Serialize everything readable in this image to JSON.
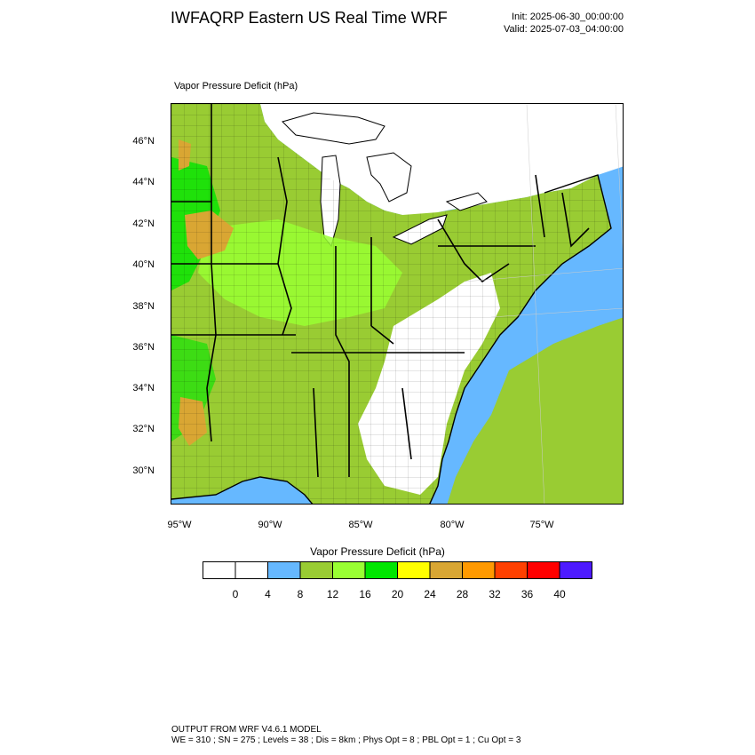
{
  "header": {
    "title": "IWFAQRP Eastern US Real Time WRF",
    "init": "Init: 2025-06-30_00:00:00",
    "valid": "Valid: 2025-07-03_04:00:00"
  },
  "map": {
    "field_label": "Vapor Pressure Deficit   (hPa)",
    "lat_labels": [
      "46°N",
      "44°N",
      "42°N",
      "40°N",
      "38°N",
      "36°N",
      "34°N",
      "32°N",
      "30°N"
    ],
    "lon_labels": [
      "95°W",
      "90°W",
      "85°W",
      "80°W",
      "75°W"
    ],
    "colors": {
      "ocean": "#66b8ff",
      "land_low": "#ffffff",
      "band_8_12": "#99cc33",
      "band_12_16": "#99ff33",
      "band_16_20": "#00e600",
      "band_24_28": "#d9a633"
    }
  },
  "colorbar": {
    "title": "Vapor Pressure Deficit  (hPa)",
    "colors": [
      "#ffffff",
      "#ffffff",
      "#66b8ff",
      "#99cc33",
      "#99ff33",
      "#00e600",
      "#ffff00",
      "#d9a633",
      "#ff9900",
      "#ff4000",
      "#ff0000",
      "#4d1aff"
    ],
    "labels": [
      "0",
      "4",
      "8",
      "12",
      "16",
      "20",
      "24",
      "28",
      "32",
      "36",
      "40"
    ]
  },
  "footer": {
    "line1": "OUTPUT FROM WRF V4.6.1 MODEL",
    "line2": "WE = 310 ; SN = 275 ; Levels = 38 ; Dis = 8km ; Phys Opt = 8 ; PBL Opt = 1 ; Cu Opt = 3"
  }
}
